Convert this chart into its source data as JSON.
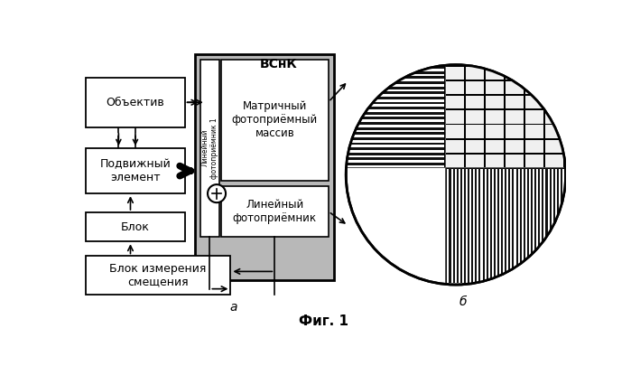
{
  "bg_color": "#ffffff",
  "title": "Фиг. 1",
  "label_a": "а",
  "label_b": "б",
  "vsnik_label": "ВСнК",
  "linear1_label": "Линейный\nфотоприёмник 1",
  "matrix_label": "Матричный\nфотоприёмный\nмассив",
  "linear2_label": "Линейный\nфотоприёмник",
  "objlabel": "Объектив",
  "podlabel": "Подвижный\nэлемент",
  "bloklabel": "Блок",
  "blok_izm_label": "Блок измерения\nсмещения"
}
